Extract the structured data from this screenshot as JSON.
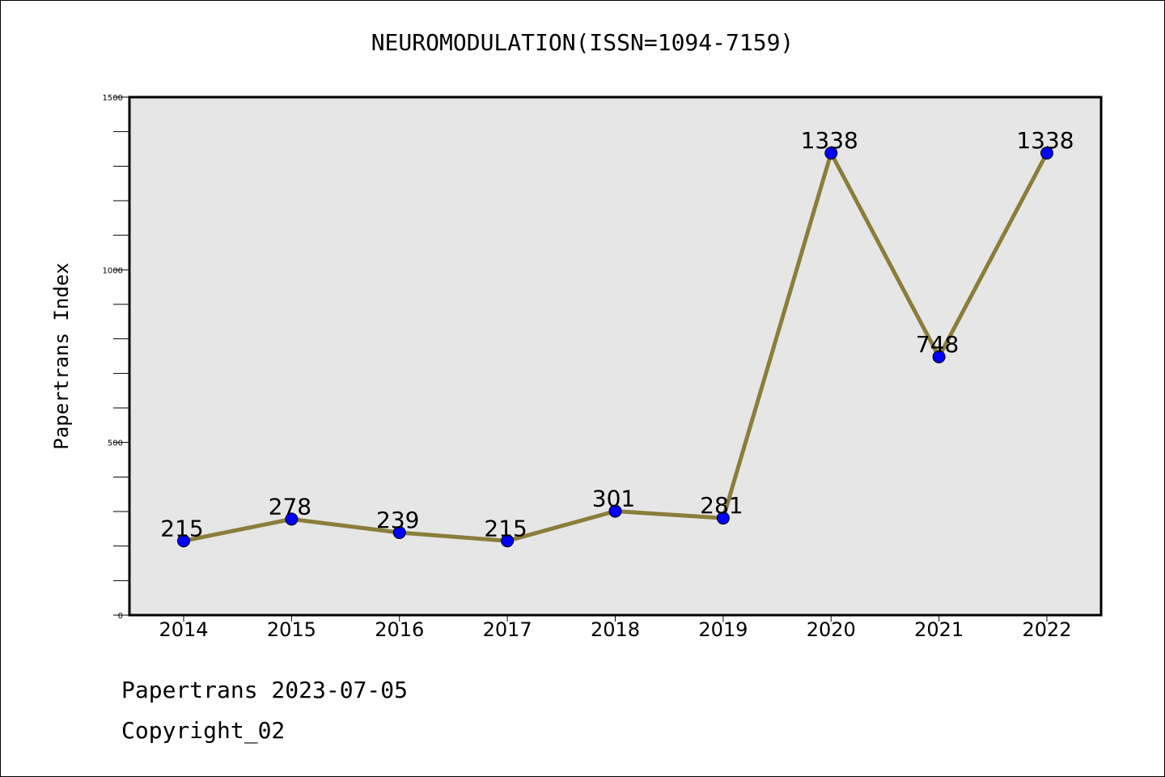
{
  "page": {
    "footer_line1": "Papertrans 2023-07-05",
    "footer_line2": "Copyright_02"
  },
  "chart_data": {
    "type": "line",
    "title": "NEUROMODULATION(ISSN=1094-7159)",
    "xlabel": "",
    "ylabel": "Papertrans Index",
    "categories": [
      "2014",
      "2015",
      "2016",
      "2017",
      "2018",
      "2019",
      "2020",
      "2021",
      "2022"
    ],
    "series": [
      {
        "values": [
          215,
          278,
          239,
          215,
          301,
          281,
          1338,
          748,
          1338
        ]
      }
    ],
    "data_labels": [
      "215",
      "278",
      "239",
      "215",
      "301",
      "281",
      "1338",
      "748",
      "1338"
    ],
    "ylim": [
      0,
      1500
    ],
    "yticks": [
      0,
      500,
      1000,
      1500
    ],
    "grid": false,
    "colors": {
      "line": "#8b7d3a",
      "marker": "#0000ff",
      "plot_background": "#e6e6e6"
    }
  }
}
